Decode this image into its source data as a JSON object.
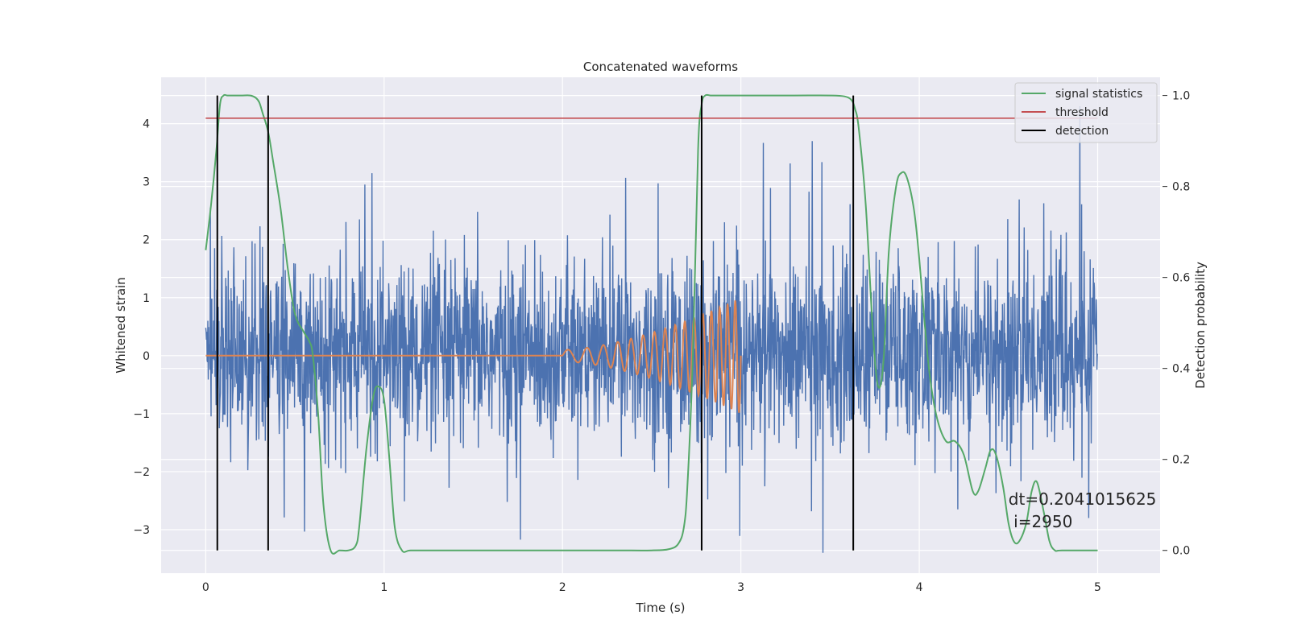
{
  "chart_data": {
    "type": "line",
    "title": "Concatenated waveforms",
    "xlabel": "Time (s)",
    "ylabel": "Whitened strain",
    "y2label": "Detection probability",
    "xlim": [
      -0.25,
      5.35
    ],
    "ylim": [
      -3.75,
      4.8
    ],
    "y2lim": [
      -0.05,
      1.04
    ],
    "x_ticks": [
      "0",
      "1",
      "2",
      "3",
      "4",
      "5"
    ],
    "y_ticks": [
      "−3",
      "−2",
      "−1",
      "0",
      "1",
      "2",
      "3",
      "4"
    ],
    "y2_ticks": [
      "0.0",
      "0.2",
      "0.4",
      "0.6",
      "0.8",
      "1.0"
    ],
    "grid": true,
    "legend_position": "top-right",
    "colors": {
      "noise": "#4c72b0",
      "injection": "#dd8452",
      "signal_statistics": "#55a868",
      "threshold": "#c44e52",
      "detection": "#000000",
      "plot_background": "#eaeaf2",
      "grid": "#ffffff"
    },
    "series": [
      {
        "name": "signal statistics",
        "axis": "right",
        "x": [
          0.0,
          0.03,
          0.06,
          0.08,
          0.1,
          0.12,
          0.15,
          0.2,
          0.25,
          0.28,
          0.3,
          0.32,
          0.35,
          0.38,
          0.42,
          0.46,
          0.5,
          0.55,
          0.58,
          0.6,
          0.63,
          0.66,
          0.7,
          0.75,
          0.8,
          0.84,
          0.86,
          0.9,
          0.94,
          0.97,
          1.0,
          1.03,
          1.06,
          1.1,
          1.15,
          1.3,
          1.6,
          2.0,
          2.3,
          2.5,
          2.6,
          2.65,
          2.68,
          2.7,
          2.73,
          2.76,
          2.78,
          2.8,
          2.83,
          2.86,
          2.9,
          3.0,
          3.3,
          3.5,
          3.58,
          3.62,
          3.64,
          3.66,
          3.7,
          3.74,
          3.77,
          3.8,
          3.83,
          3.87,
          3.9,
          3.93,
          3.97,
          4.0,
          4.03,
          4.06,
          4.1,
          4.15,
          4.2,
          4.25,
          4.3,
          4.33,
          4.37,
          4.4,
          4.43,
          4.47,
          4.5,
          4.53,
          4.56,
          4.6,
          4.63,
          4.66,
          4.7,
          4.73,
          4.76,
          4.8,
          5.0
        ],
        "values": [
          0.66,
          0.76,
          0.88,
          0.98,
          1.0,
          1.0,
          1.0,
          1.0,
          1.0,
          0.995,
          0.985,
          0.96,
          0.92,
          0.85,
          0.75,
          0.62,
          0.52,
          0.48,
          0.46,
          0.43,
          0.3,
          0.1,
          0.0,
          0.0,
          0.0,
          0.01,
          0.05,
          0.22,
          0.34,
          0.36,
          0.33,
          0.2,
          0.05,
          0.0,
          0.0,
          0.0,
          0.0,
          0.0,
          0.0,
          0.0,
          0.003,
          0.015,
          0.05,
          0.14,
          0.42,
          0.88,
          0.98,
          1.0,
          1.0,
          1.0,
          1.0,
          1.0,
          1.0,
          1.0,
          0.998,
          0.99,
          0.97,
          0.93,
          0.76,
          0.48,
          0.36,
          0.42,
          0.66,
          0.8,
          0.83,
          0.82,
          0.75,
          0.64,
          0.5,
          0.38,
          0.29,
          0.24,
          0.24,
          0.21,
          0.13,
          0.13,
          0.18,
          0.22,
          0.21,
          0.14,
          0.06,
          0.02,
          0.02,
          0.06,
          0.13,
          0.15,
          0.08,
          0.02,
          0.0,
          0.0,
          0.0
        ]
      },
      {
        "name": "threshold",
        "axis": "right",
        "x": [
          0.0,
          5.0
        ],
        "values": [
          0.95,
          0.95
        ]
      },
      {
        "name": "detection",
        "axis": "right",
        "x_positions": [
          0.065,
          0.35,
          2.78,
          3.63
        ],
        "y_range": [
          0.0,
          1.0
        ]
      }
    ],
    "unlabeled_series": [
      {
        "description": "noise",
        "axis": "left",
        "x_range": [
          0.0,
          5.0
        ],
        "typical_range": [
          -1.2,
          1.3
        ],
        "peak_min": -3.4,
        "peak_max": 4.3
      },
      {
        "description": "injection",
        "axis": "left",
        "x_range": [
          0.0,
          3.0
        ],
        "chirp_start": 2.0,
        "chirp_end": 3.0,
        "max_amplitude": 1.0
      }
    ],
    "annotation": {
      "line1": "dt=0.2041015625",
      "line2": " i=2950",
      "x": 4.5,
      "y2": 0.1
    }
  }
}
